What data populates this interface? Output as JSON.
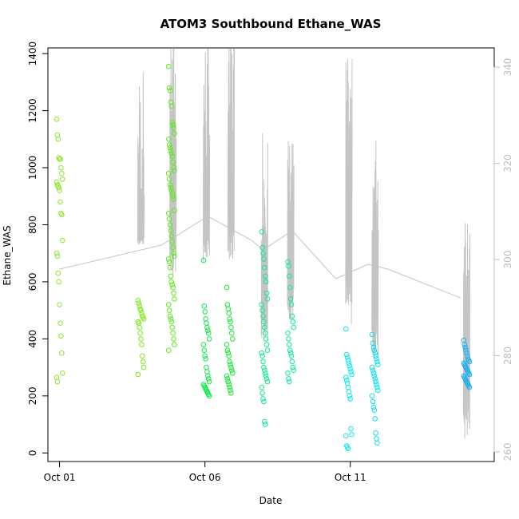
{
  "chart_data": {
    "type": "scatter",
    "title": "ATOM3 Southbound Ethane_WAS",
    "xlabel": "Date",
    "ylabel": "Ethane_WAS",
    "x_ticks": [
      {
        "label": "Oct 01",
        "day": 1
      },
      {
        "label": "Oct 06",
        "day": 6
      },
      {
        "label": "Oct 11",
        "day": 11
      }
    ],
    "xlim_days": [
      0.6,
      15.95
    ],
    "ylim": [
      -30,
      1420
    ],
    "y_ticks": [
      0,
      200,
      400,
      600,
      800,
      1000,
      1200,
      1400
    ],
    "right_axis": {
      "label": "",
      "color": "#bdbdbd",
      "ylim": [
        258,
        344
      ],
      "ticks": [
        260,
        280,
        300,
        320,
        340
      ]
    },
    "grid": false,
    "marker": "open-circle",
    "line_color": "#c4c4c4",
    "series": [
      {
        "day": 1.0,
        "color": "#8ee62c",
        "values": [
          1170,
          1115,
          1100,
          1035,
          1030,
          1030,
          1000,
          980,
          960,
          950,
          940,
          935,
          930,
          920,
          880,
          840,
          835,
          745,
          700,
          690,
          630,
          600,
          520,
          455,
          410,
          350,
          280,
          265,
          250
        ]
      },
      {
        "day": 3.8,
        "color": "#7ee81c",
        "values": [
          535,
          525,
          515,
          505,
          500,
          490,
          480,
          475,
          470,
          460,
          455,
          440,
          420,
          400,
          380,
          340,
          320,
          300,
          275
        ]
      },
      {
        "day": 4.85,
        "color": "#5ee820",
        "values": [
          1355,
          1280,
          1270,
          1230,
          1215,
          1160,
          1150,
          1140,
          1120,
          1100,
          1080,
          1070,
          1060,
          1050,
          1040,
          1020,
          1000,
          990,
          980,
          960,
          940,
          930,
          920,
          910,
          900,
          890,
          850,
          840,
          820,
          800,
          780,
          760,
          740,
          720,
          700,
          690,
          680,
          670,
          650,
          620,
          600,
          590,
          580,
          560,
          540,
          520,
          500,
          480,
          470,
          460,
          440,
          420,
          400,
          380,
          360
        ]
      },
      {
        "day": 6.05,
        "color": "#10e84a",
        "values": [
          675,
          515,
          495,
          470,
          455,
          440,
          430,
          420,
          400,
          380,
          360,
          340,
          330,
          300,
          285,
          270,
          260,
          250,
          240,
          235,
          230,
          225,
          220,
          215,
          210,
          205,
          200
        ]
      },
      {
        "day": 6.85,
        "color": "#1ae838",
        "values": [
          580,
          520,
          505,
          490,
          470,
          460,
          440,
          420,
          400,
          380,
          360,
          350,
          340,
          320,
          310,
          300,
          290,
          280,
          270,
          260,
          250,
          240,
          230,
          220,
          210
        ]
      },
      {
        "day": 8.05,
        "color": "#10e890",
        "values": [
          775,
          720,
          700,
          680,
          650,
          620,
          600,
          560,
          540,
          520,
          500,
          480,
          460,
          440,
          420,
          400,
          380,
          360,
          350,
          340,
          320,
          300,
          290,
          280,
          270,
          260,
          250,
          230,
          210,
          190,
          180,
          110,
          100
        ]
      },
      {
        "day": 8.95,
        "color": "#10e8a2",
        "values": [
          670,
          655,
          620,
          580,
          540,
          520,
          480,
          460,
          440,
          420,
          400,
          380,
          360,
          350,
          340,
          320,
          300,
          290,
          280,
          260,
          250
        ]
      },
      {
        "day": 10.95,
        "color": "#14e6e6",
        "values": [
          435,
          345,
          335,
          325,
          315,
          305,
          295,
          285,
          275,
          265,
          255,
          245,
          230,
          215,
          200,
          190,
          85,
          65,
          60,
          25,
          20,
          15
        ]
      },
      {
        "day": 11.85,
        "color": "#10dcea",
        "values": [
          415,
          385,
          370,
          360,
          350,
          340,
          330,
          320,
          310,
          300,
          290,
          280,
          270,
          260,
          250,
          240,
          230,
          220,
          200,
          180,
          160,
          150,
          120,
          70,
          50,
          35
        ]
      },
      {
        "day": 15.0,
        "color": "#1ab0f0",
        "values": [
          395,
          380,
          370,
          360,
          350,
          340,
          330,
          325,
          320,
          315,
          310,
          305,
          300,
          295,
          290,
          285,
          280,
          275,
          270,
          265,
          260,
          255,
          250,
          245,
          240,
          235,
          230
        ]
      }
    ],
    "right_axis_line": {
      "connectors": [
        [
          1.0,
          298
        ],
        [
          4.5,
          303
        ],
        [
          6.1,
          309
        ],
        [
          7.6,
          304
        ],
        [
          8.0,
          302
        ],
        [
          9.0,
          306
        ],
        [
          10.5,
          296
        ],
        [
          11.6,
          299
        ],
        [
          12.3,
          298
        ],
        [
          14.8,
          292
        ]
      ],
      "spikes": [
        {
          "day": 3.8,
          "low": 303,
          "high": 307,
          "top": 340
        },
        {
          "day": 4.9,
          "low": 296,
          "high": 323,
          "top": 347
        },
        {
          "day": 6.05,
          "low": 299,
          "high": 313,
          "top": 349
        },
        {
          "day": 6.9,
          "low": 300,
          "high": 319,
          "top": 349
        },
        {
          "day": 8.05,
          "low": 283,
          "high": 303,
          "top": 331
        },
        {
          "day": 8.95,
          "low": 287,
          "high": 306,
          "top": 326
        },
        {
          "day": 10.95,
          "low": 286,
          "high": 312,
          "top": 342
        },
        {
          "day": 11.85,
          "low": 279,
          "high": 302,
          "top": 327
        },
        {
          "day": 15.0,
          "low": 262,
          "high": 292,
          "top": 313
        }
      ]
    }
  }
}
